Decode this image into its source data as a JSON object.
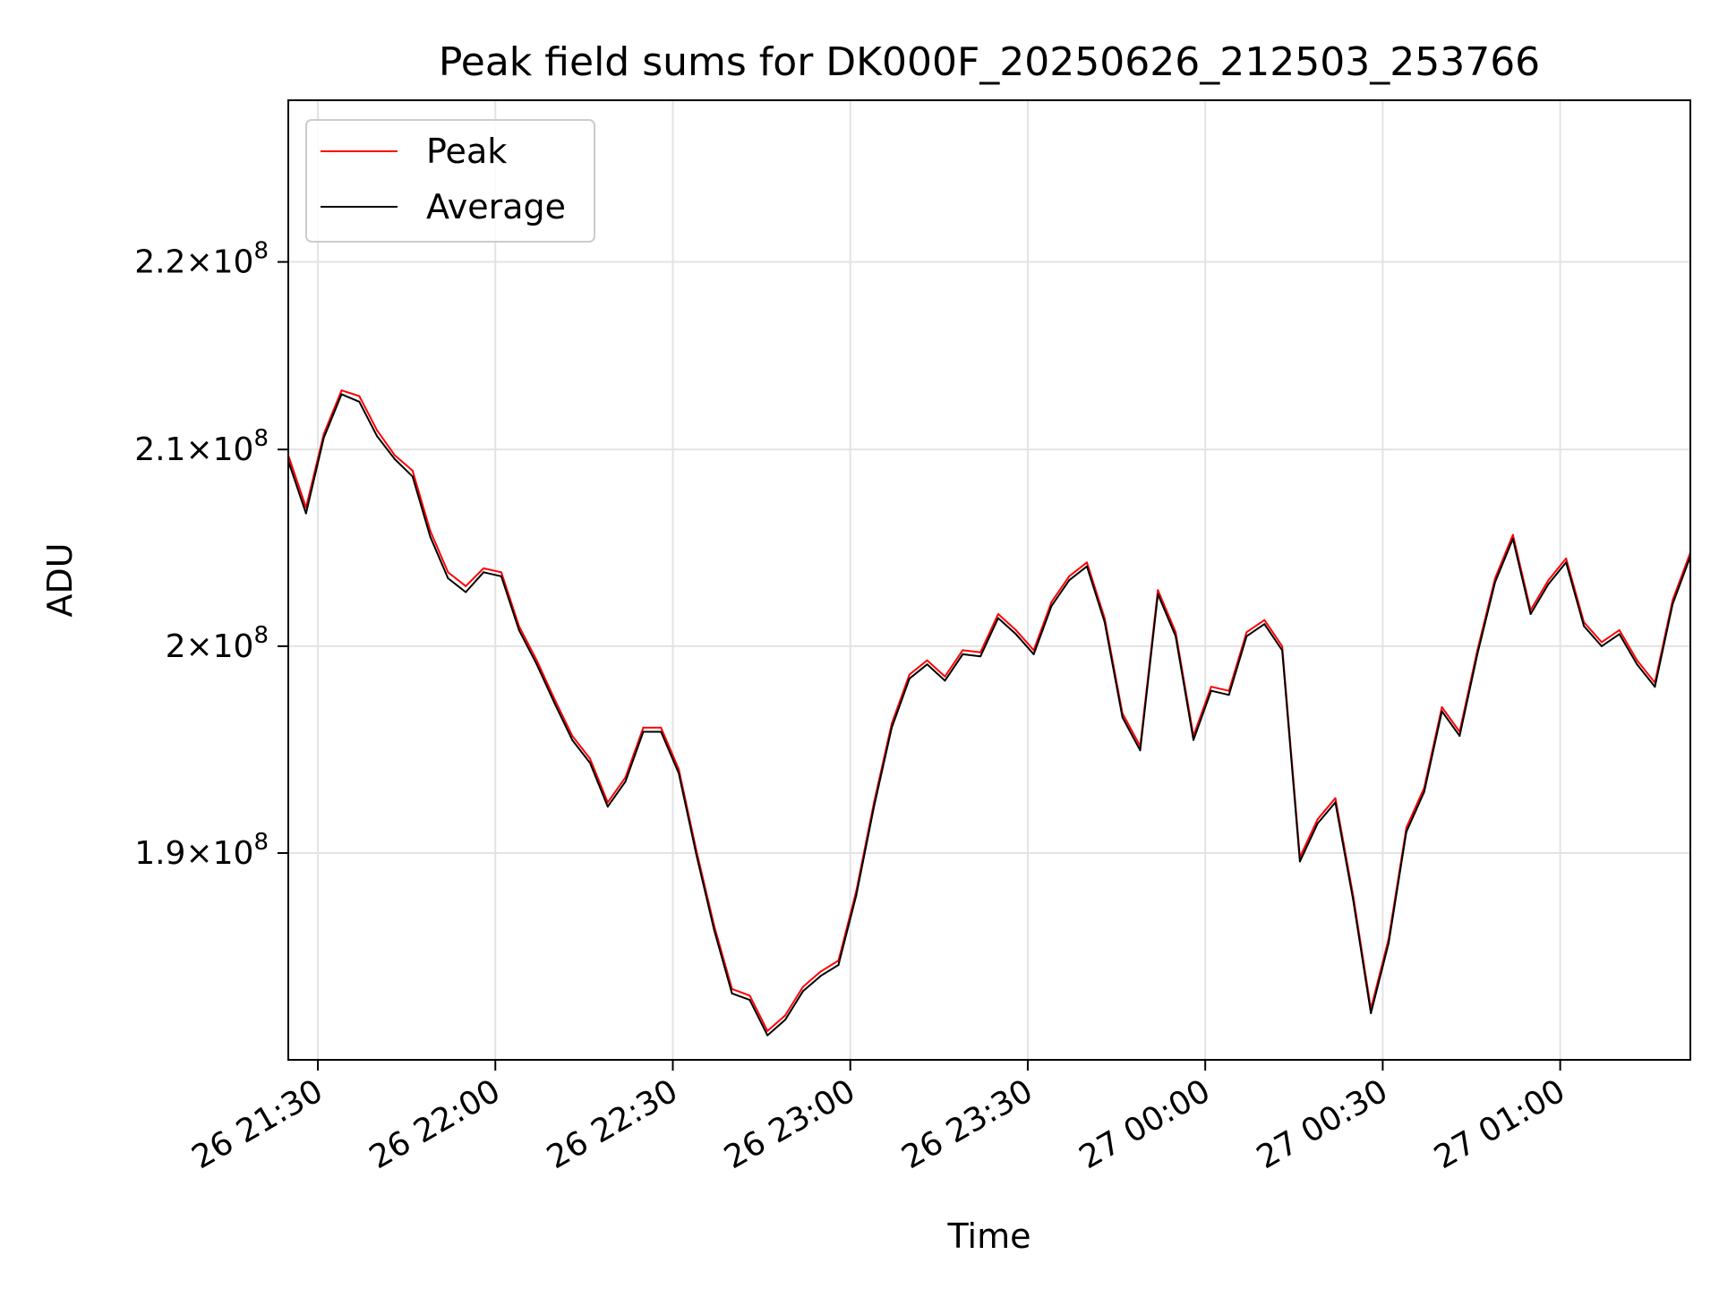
{
  "chart_data": {
    "type": "line",
    "title": "Peak field sums for DK000F_20250626_212503_253766",
    "xlabel": "Time",
    "ylabel": "ADU",
    "y_scale": "log",
    "xlim": [
      "2025-06-26 21:25",
      "2025-06-27 01:22"
    ],
    "ylim": [
      180500000,
      229000000
    ],
    "grid": true,
    "legend_position": "top-left",
    "x_ticks": [
      {
        "value": "2025-06-26 21:30",
        "label": "26 21:30"
      },
      {
        "value": "2025-06-26 22:00",
        "label": "26 22:00"
      },
      {
        "value": "2025-06-26 22:30",
        "label": "26 22:30"
      },
      {
        "value": "2025-06-26 23:00",
        "label": "26 23:00"
      },
      {
        "value": "2025-06-26 23:30",
        "label": "26 23:30"
      },
      {
        "value": "2025-06-27 00:00",
        "label": "27 00:00"
      },
      {
        "value": "2025-06-27 00:30",
        "label": "27 00:30"
      },
      {
        "value": "2025-06-27 01:00",
        "label": "27 01:00"
      }
    ],
    "y_ticks": [
      {
        "value": 190000000,
        "mantissa": "1.9",
        "exponent": "8"
      },
      {
        "value": 200000000,
        "mantissa": "2",
        "exponent": "8"
      },
      {
        "value": 210000000,
        "mantissa": "2.1",
        "exponent": "8"
      },
      {
        "value": 220000000,
        "mantissa": "2.2",
        "exponent": "8"
      }
    ],
    "x": [
      "2025-06-26 21:25",
      "2025-06-26 21:28",
      "2025-06-26 21:31",
      "2025-06-26 21:34",
      "2025-06-26 21:37",
      "2025-06-26 21:40",
      "2025-06-26 21:43",
      "2025-06-26 21:46",
      "2025-06-26 21:49",
      "2025-06-26 21:52",
      "2025-06-26 21:55",
      "2025-06-26 21:58",
      "2025-06-26 22:01",
      "2025-06-26 22:04",
      "2025-06-26 22:07",
      "2025-06-26 22:10",
      "2025-06-26 22:13",
      "2025-06-26 22:16",
      "2025-06-26 22:19",
      "2025-06-26 22:22",
      "2025-06-26 22:25",
      "2025-06-26 22:28",
      "2025-06-26 22:31",
      "2025-06-26 22:34",
      "2025-06-26 22:37",
      "2025-06-26 22:40",
      "2025-06-26 22:43",
      "2025-06-26 22:46",
      "2025-06-26 22:49",
      "2025-06-26 22:52",
      "2025-06-26 22:55",
      "2025-06-26 22:58",
      "2025-06-26 23:01",
      "2025-06-26 23:04",
      "2025-06-26 23:07",
      "2025-06-26 23:10",
      "2025-06-26 23:13",
      "2025-06-26 23:16",
      "2025-06-26 23:19",
      "2025-06-26 23:22",
      "2025-06-26 23:25",
      "2025-06-26 23:28",
      "2025-06-26 23:31",
      "2025-06-26 23:34",
      "2025-06-26 23:37",
      "2025-06-26 23:40",
      "2025-06-26 23:43",
      "2025-06-26 23:46",
      "2025-06-26 23:49",
      "2025-06-26 23:52",
      "2025-06-26 23:55",
      "2025-06-26 23:58",
      "2025-06-27 00:01",
      "2025-06-27 00:04",
      "2025-06-27 00:07",
      "2025-06-27 00:10",
      "2025-06-27 00:13",
      "2025-06-27 00:16",
      "2025-06-27 00:19",
      "2025-06-27 00:22",
      "2025-06-27 00:25",
      "2025-06-27 00:28",
      "2025-06-27 00:31",
      "2025-06-27 00:34",
      "2025-06-27 00:37",
      "2025-06-27 00:40",
      "2025-06-27 00:43",
      "2025-06-27 00:46",
      "2025-06-27 00:49",
      "2025-06-27 00:52",
      "2025-06-27 00:55",
      "2025-06-27 00:58",
      "2025-06-27 01:01",
      "2025-06-27 01:04",
      "2025-06-27 01:07",
      "2025-06-27 01:10",
      "2025-06-27 01:13",
      "2025-06-27 01:16",
      "2025-06-27 01:19",
      "2025-06-27 01:22"
    ],
    "series": [
      {
        "name": "Peak",
        "color": "#ff0000",
        "values": [
          209700000,
          207000000,
          210800000,
          213100000,
          212800000,
          211000000,
          209700000,
          208900000,
          205800000,
          203700000,
          203000000,
          203900000,
          203700000,
          201000000,
          199300000,
          197400000,
          195600000,
          194500000,
          192400000,
          193600000,
          196000000,
          196000000,
          194000000,
          190100000,
          186600000,
          183700000,
          183400000,
          181800000,
          182500000,
          183800000,
          184500000,
          185000000,
          188200000,
          192400000,
          196200000,
          198600000,
          199300000,
          198500000,
          199800000,
          199700000,
          201600000,
          200800000,
          199800000,
          202200000,
          203500000,
          204200000,
          201400000,
          196700000,
          195100000,
          202800000,
          200700000,
          195600000,
          198000000,
          197800000,
          200700000,
          201300000,
          200000000,
          189800000,
          191600000,
          192600000,
          188000000,
          182800000,
          186000000,
          191200000,
          193100000,
          197000000,
          195800000,
          199800000,
          203400000,
          205600000,
          201800000,
          203300000,
          204400000,
          201200000,
          200200000,
          200800000,
          199300000,
          198200000,
          202300000,
          204700000
        ]
      },
      {
        "name": "Average",
        "color": "#000000",
        "values": [
          209400000,
          206700000,
          210600000,
          212900000,
          212500000,
          210700000,
          209500000,
          208600000,
          205500000,
          203400000,
          202700000,
          203700000,
          203500000,
          200800000,
          199100000,
          197200000,
          195400000,
          194300000,
          192200000,
          193400000,
          195800000,
          195800000,
          193800000,
          189900000,
          186400000,
          183500000,
          183200000,
          181600000,
          182300000,
          183600000,
          184300000,
          184800000,
          188000000,
          192200000,
          196000000,
          198400000,
          199100000,
          198300000,
          199600000,
          199500000,
          201400000,
          200600000,
          199600000,
          202000000,
          203300000,
          204000000,
          201200000,
          196500000,
          194900000,
          202600000,
          200500000,
          195400000,
          197800000,
          197600000,
          200500000,
          201100000,
          199800000,
          189600000,
          191400000,
          192400000,
          187800000,
          182600000,
          185800000,
          191000000,
          192900000,
          196800000,
          195600000,
          199600000,
          203200000,
          205400000,
          201600000,
          203100000,
          204200000,
          201000000,
          200000000,
          200600000,
          199100000,
          198000000,
          202100000,
          204500000
        ]
      }
    ]
  }
}
